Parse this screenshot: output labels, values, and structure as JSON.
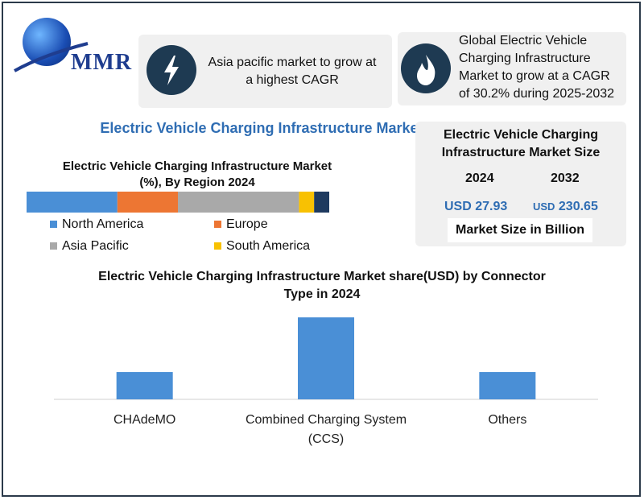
{
  "brand": {
    "name": "MMR"
  },
  "cards": {
    "asia": {
      "text_line1": "Asia pacific market to grow at",
      "text_line2": "a highest CAGR",
      "icon": "lightning-icon"
    },
    "global": {
      "text_line1": "Global Electric Vehicle",
      "text_line2": "Charging Infrastructure",
      "text_line3": "Market to grow at a CAGR",
      "text_line4": "of 30.2% during 2025-2032",
      "icon": "flame-icon"
    }
  },
  "main_title": "Electric Vehicle Charging Infrastructure Market",
  "size_card": {
    "title_line1": "Electric Vehicle Charging",
    "title_line2": "Infrastructure Market Size",
    "year_a": "2024",
    "year_b": "2032",
    "value_a": "USD 27.93",
    "value_b_prefix": "USD",
    "value_b": "230.65",
    "unit": "Market Size in Billion"
  },
  "colors": {
    "accent": "#2f6db3",
    "dark_navy": "#1e3a52",
    "card_bg": "#f0f0f0"
  },
  "chart_data": [
    {
      "type": "bar",
      "orientation": "horizontal-stacked",
      "title": "Electric Vehicle Charging Infrastructure Market (%), By Region 2024",
      "title_line1": "Electric Vehicle Charging Infrastructure Market",
      "title_line2": "(%), By Region 2024",
      "series": [
        {
          "name": "North America",
          "value": 30,
          "color": "#4a8fd6"
        },
        {
          "name": "Europe",
          "value": 20,
          "color": "#ed7633"
        },
        {
          "name": "Asia Pacific",
          "value": 40,
          "color": "#a9a9a9"
        },
        {
          "name": "South America",
          "value": 5,
          "color": "#f8c102"
        },
        {
          "name": "",
          "value": 5,
          "color": "#1e3a5f"
        }
      ],
      "legend": [
        "North America",
        "Europe",
        "Asia Pacific",
        "South America"
      ],
      "legend_placement": "bottom"
    },
    {
      "type": "bar",
      "title": "Electric Vehicle Charging Infrastructure Market share(USD)  by Connector Type in 2024",
      "title_line1": "Electric Vehicle Charging Infrastructure Market share(USD)  by Connector",
      "title_line2": "Type in 2024",
      "categories": [
        "CHAdeMO",
        "Combined Charging System (CCS)",
        "Others"
      ],
      "category_lines": [
        [
          "CHAdeMO"
        ],
        [
          "Combined Charging System",
          "(CCS)"
        ],
        [
          "Others"
        ]
      ],
      "values": [
        1,
        3,
        1
      ],
      "color": "#4a8fd6",
      "ylim": [
        0,
        3.3
      ],
      "grid": false,
      "axes_visible": false
    }
  ]
}
